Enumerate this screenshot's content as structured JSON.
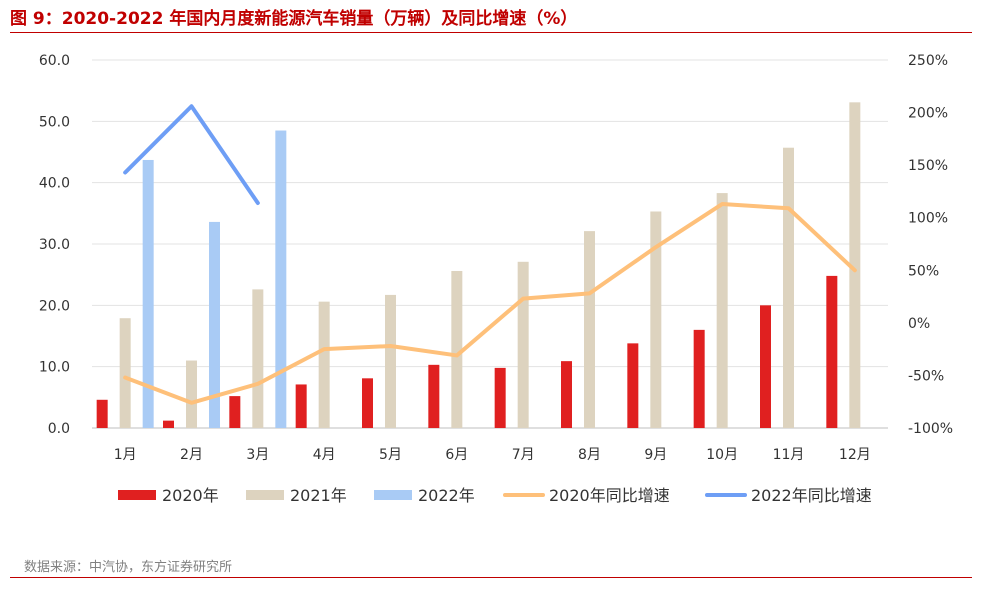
{
  "title": "图 9：2020-2022 年国内月度新能源汽车销量（万辆）及同比增速（%）",
  "source": "数据来源：中汽协，东方证券研究所",
  "chart_data": {
    "type": "bar",
    "categories": [
      "1月",
      "2月",
      "3月",
      "4月",
      "5月",
      "6月",
      "7月",
      "8月",
      "9月",
      "10月",
      "11月",
      "12月"
    ],
    "y_left": {
      "ylim": [
        0,
        60
      ],
      "ticks": [
        0,
        10,
        20,
        30,
        40,
        50,
        60
      ],
      "tick_labels": [
        "0.0",
        "10.0",
        "20.0",
        "30.0",
        "40.0",
        "50.0",
        "60.0"
      ]
    },
    "y_right": {
      "ylim": [
        -100,
        250
      ],
      "ticks": [
        -100,
        -50,
        0,
        50,
        100,
        150,
        200,
        250
      ],
      "tick_labels": [
        "-100%",
        "-50%",
        "0%",
        "50%",
        "100%",
        "150%",
        "200%",
        "250%"
      ]
    },
    "grid": true,
    "legend_position": "bottom",
    "bar_series": [
      {
        "name": "2020年",
        "color": "#e02020",
        "values": [
          4.6,
          1.2,
          5.2,
          7.1,
          8.1,
          10.3,
          9.8,
          10.9,
          13.8,
          16.0,
          20.0,
          24.8
        ]
      },
      {
        "name": "2021年",
        "color": "#ddd3bf",
        "values": [
          17.9,
          11.0,
          22.6,
          20.6,
          21.7,
          25.6,
          27.1,
          32.1,
          35.3,
          38.3,
          45.7,
          53.1
        ]
      },
      {
        "name": "2022年",
        "color": "#a9cbf5",
        "values": [
          43.7,
          33.6,
          48.5,
          null,
          null,
          null,
          null,
          null,
          null,
          null,
          null,
          null
        ]
      }
    ],
    "line_series": [
      {
        "name": "2020年同比增速",
        "color": "#fec07a",
        "axis": "right",
        "values": [
          -52,
          -76,
          -58,
          -25,
          -22,
          -31,
          23,
          28,
          72,
          113,
          109,
          50
        ]
      },
      {
        "name": "2022年同比增速",
        "color": "#6e9ef5",
        "axis": "right",
        "values": [
          143,
          206,
          114,
          null,
          null,
          null,
          null,
          null,
          null,
          null,
          null,
          null
        ]
      }
    ]
  }
}
